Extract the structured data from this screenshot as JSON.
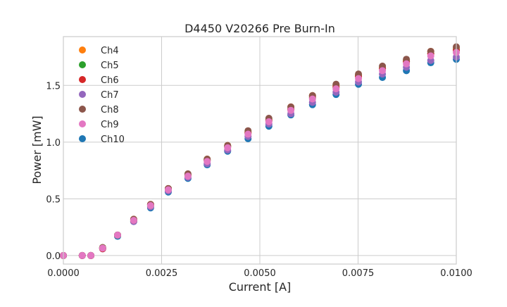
{
  "chart_data": {
    "type": "scatter",
    "title": "D4450 V20266 Pre Burn-In",
    "xlabel": "Current [A]",
    "ylabel": "Power [mW]",
    "xlim": [
      0,
      0.01
    ],
    "ylim": [
      -0.075,
      1.93
    ],
    "grid": true,
    "legend_position": "top-left",
    "x_ticks": [
      "0.0000",
      "0.0025",
      "0.0050",
      "0.0075",
      "0.0100"
    ],
    "y_ticks": [
      "0.0",
      "0.5",
      "1.0",
      "1.5"
    ],
    "x": [
      0,
      0.00048,
      0.0007,
      0.001,
      0.00138,
      0.00179,
      0.00222,
      0.00267,
      0.00317,
      0.00366,
      0.00418,
      0.0047,
      0.00523,
      0.00579,
      0.00634,
      0.00694,
      0.00751,
      0.00812,
      0.00873,
      0.00935,
      0.01
    ],
    "series": [
      {
        "name": "Ch4",
        "color": "#ff7f0e",
        "values": [
          0,
          0,
          0,
          0.07,
          0.18,
          0.32,
          0.45,
          0.59,
          0.71,
          0.85,
          0.97,
          1.09,
          1.2,
          1.31,
          1.41,
          1.5,
          1.59,
          1.66,
          1.72,
          1.8,
          1.83
        ]
      },
      {
        "name": "Ch5",
        "color": "#2ca02c",
        "values": [
          0,
          0,
          0,
          0.07,
          0.18,
          0.31,
          0.44,
          0.59,
          0.71,
          0.84,
          0.96,
          1.08,
          1.19,
          1.29,
          1.39,
          1.48,
          1.58,
          1.65,
          1.71,
          1.78,
          1.81
        ]
      },
      {
        "name": "Ch6",
        "color": "#d62728",
        "values": [
          0,
          0,
          0,
          0.06,
          0.18,
          0.31,
          0.45,
          0.59,
          0.71,
          0.84,
          0.96,
          1.08,
          1.19,
          1.29,
          1.4,
          1.49,
          1.58,
          1.65,
          1.71,
          1.78,
          1.81
        ]
      },
      {
        "name": "Ch7",
        "color": "#9467bd",
        "values": [
          0,
          0,
          0,
          0.06,
          0.18,
          0.3,
          0.43,
          0.57,
          0.69,
          0.81,
          0.93,
          1.05,
          1.16,
          1.25,
          1.35,
          1.44,
          1.53,
          1.6,
          1.66,
          1.72,
          1.75
        ]
      },
      {
        "name": "Ch8",
        "color": "#8c564b",
        "values": [
          0,
          0,
          0,
          0.07,
          0.18,
          0.32,
          0.45,
          0.59,
          0.72,
          0.85,
          0.97,
          1.1,
          1.21,
          1.31,
          1.41,
          1.51,
          1.6,
          1.67,
          1.73,
          1.8,
          1.84
        ]
      },
      {
        "name": "Ch9",
        "color": "#e377c2",
        "values": [
          0,
          0,
          0,
          0.065,
          0.18,
          0.31,
          0.44,
          0.58,
          0.7,
          0.83,
          0.95,
          1.07,
          1.18,
          1.28,
          1.38,
          1.47,
          1.56,
          1.63,
          1.69,
          1.76,
          1.79
        ]
      },
      {
        "name": "Ch10",
        "color": "#1f77b4",
        "values": [
          0,
          0,
          0,
          0.06,
          0.17,
          0.3,
          0.42,
          0.56,
          0.68,
          0.8,
          0.92,
          1.03,
          1.14,
          1.24,
          1.33,
          1.42,
          1.51,
          1.57,
          1.63,
          1.7,
          1.73
        ]
      }
    ]
  }
}
